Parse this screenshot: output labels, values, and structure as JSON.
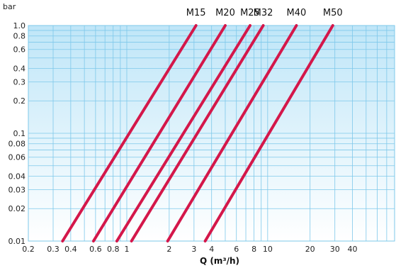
{
  "chart_data": {
    "type": "line",
    "title": "",
    "xlabel": "Q (m³/h)",
    "ylabel": "bar",
    "xscale": "log",
    "yscale": "log",
    "xlim": [
      0.2,
      100
    ],
    "ylim": [
      0.01,
      1.0
    ],
    "x_ticks": [
      "0.2",
      "0.3",
      "0.4",
      "0.6",
      "0.8",
      "1",
      "2",
      "3",
      "4",
      "6",
      "8",
      "10",
      "20",
      "30",
      "40"
    ],
    "y_ticks": [
      "0.01",
      "0.02",
      "0.03",
      "0.04",
      "0.06",
      "0.08",
      "0.1",
      "0.2",
      "0.3",
      "0.4",
      "0.6",
      "0.8",
      "1.0"
    ],
    "grid": true,
    "line_color": "#d4174a",
    "grid_color": "#7ec8ea",
    "background_gradient": [
      "#bfe6f8",
      "#ffffff"
    ],
    "series": [
      {
        "name": "M15",
        "points": [
          [
            0.35,
            0.01
          ],
          [
            3.1,
            1.0
          ]
        ]
      },
      {
        "name": "M20",
        "points": [
          [
            0.58,
            0.01
          ],
          [
            5.0,
            1.0
          ]
        ]
      },
      {
        "name": "M25",
        "points": [
          [
            0.85,
            0.01
          ],
          [
            7.5,
            1.0
          ]
        ]
      },
      {
        "name": "M32",
        "points": [
          [
            1.08,
            0.01
          ],
          [
            9.3,
            1.0
          ]
        ]
      },
      {
        "name": "M40",
        "points": [
          [
            1.95,
            0.01
          ],
          [
            16.0,
            1.0
          ]
        ]
      },
      {
        "name": "M50",
        "points": [
          [
            3.6,
            0.01
          ],
          [
            29.0,
            1.0
          ]
        ]
      }
    ]
  }
}
